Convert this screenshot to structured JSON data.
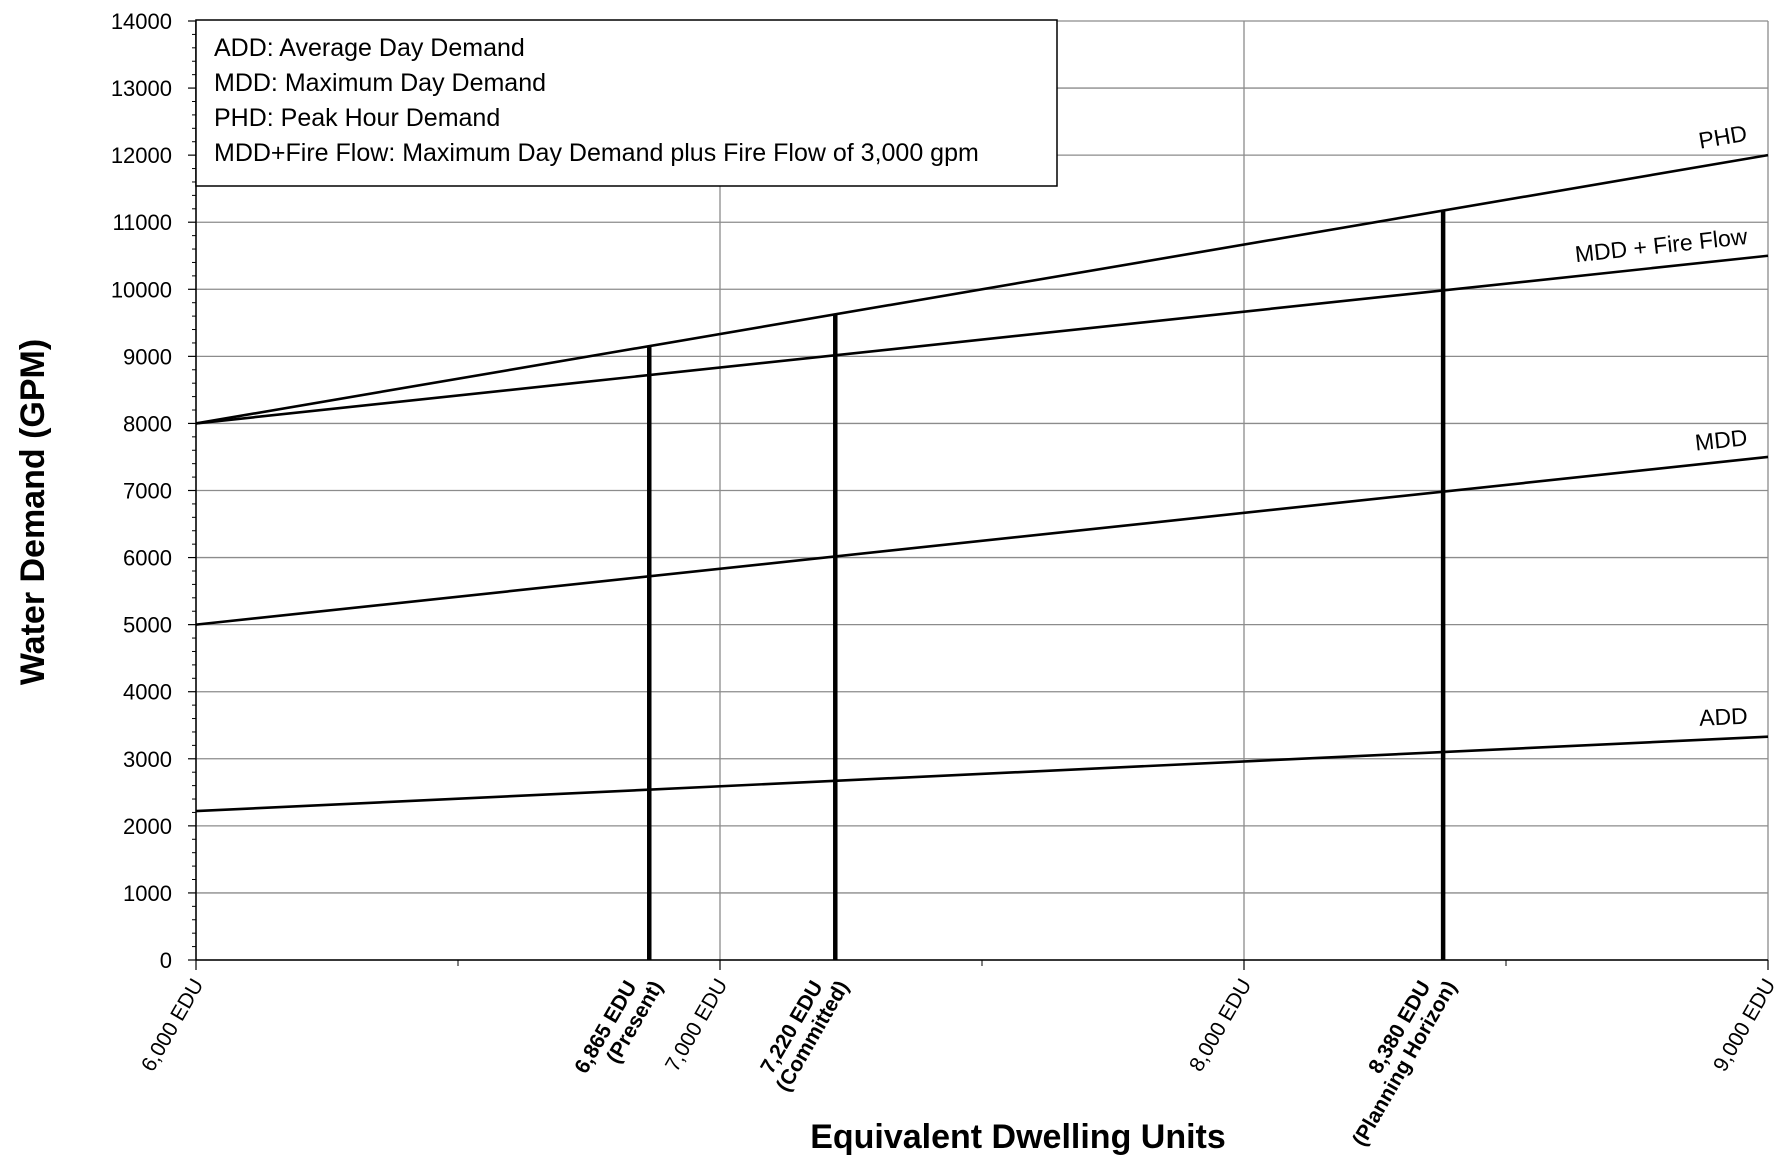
{
  "chart_data": {
    "type": "line",
    "xlabel": "Equivalent Dwelling Units",
    "ylabel": "Water Demand (GPM)",
    "xlim": [
      6000,
      9000
    ],
    "ylim": [
      0,
      14000
    ],
    "y_ticks": [
      "0",
      "1000",
      "2000",
      "3000",
      "4000",
      "5000",
      "6000",
      "7000",
      "8000",
      "9000",
      "10000",
      "11000",
      "12000",
      "13000",
      "14000"
    ],
    "x_ticks": [
      {
        "value": 6000,
        "label": "6,000 EDU"
      },
      {
        "value": 7000,
        "label": "7,000 EDU"
      },
      {
        "value": 8000,
        "label": "8,000 EDU"
      },
      {
        "value": 9000,
        "label": "9,000 EDU"
      }
    ],
    "grid": true,
    "series": [
      {
        "name": "PHD",
        "x": [
          6000,
          9000
        ],
        "values": [
          8000,
          12000
        ]
      },
      {
        "name": "MDD + Fire Flow",
        "x": [
          6000,
          9000
        ],
        "values": [
          8000,
          10500
        ]
      },
      {
        "name": "MDD",
        "x": [
          6000,
          9000
        ],
        "values": [
          5000,
          7500
        ]
      },
      {
        "name": "ADD",
        "x": [
          6000,
          9000
        ],
        "values": [
          2220,
          3330
        ]
      }
    ],
    "markers": [
      {
        "x": 6865,
        "y_top": 9150,
        "line1": "6,865 EDU",
        "line2": "(Present)"
      },
      {
        "x": 7220,
        "y_top": 9630,
        "line1": "7,220 EDU",
        "line2": "(Committed)"
      },
      {
        "x": 8380,
        "y_top": 11170,
        "line1": "8,380 EDU",
        "line2": "(Planning Horizon)"
      }
    ],
    "legend": {
      "position": "top-left",
      "entries": [
        "ADD: Average Day Demand",
        "MDD: Maximum Day Demand",
        "PHD: Peak Hour Demand",
        "MDD+Fire Flow: Maximum Day Demand plus Fire Flow of 3,000 gpm"
      ]
    }
  }
}
